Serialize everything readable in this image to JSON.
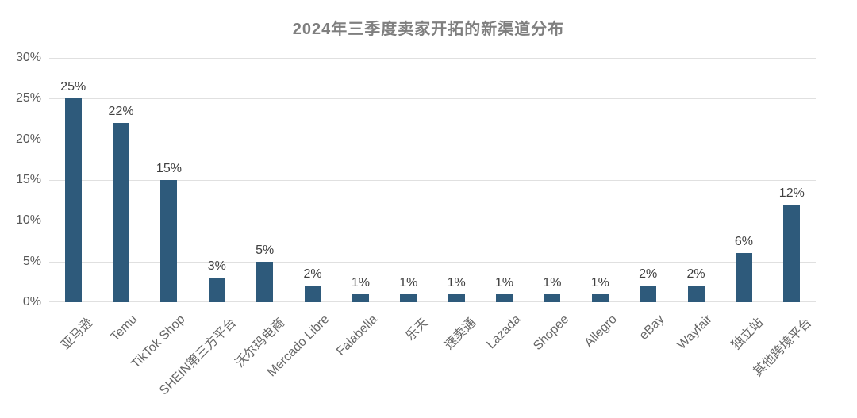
{
  "chart_data": {
    "type": "bar",
    "title": "2024年三季度卖家开拓的新渠道分布",
    "categories": [
      "亚马逊",
      "Temu",
      "TikTok Shop",
      "SHEIN第三方平台",
      "沃尔玛电商",
      "Mercado Libre",
      "Falabella",
      "乐天",
      "速卖通",
      "Lazada",
      "Shopee",
      "Allegro",
      "eBay",
      "Wayfair",
      "独立站",
      "其他跨境平台"
    ],
    "values": [
      25,
      22,
      15,
      3,
      5,
      2,
      1,
      1,
      1,
      1,
      1,
      1,
      2,
      2,
      6,
      12
    ],
    "value_labels": [
      "25%",
      "22%",
      "15%",
      "3%",
      "5%",
      "2%",
      "1%",
      "1%",
      "1%",
      "1%",
      "1%",
      "1%",
      "2%",
      "2%",
      "6%",
      "12%"
    ],
    "xlabel": "",
    "ylabel": "",
    "ylim": [
      0,
      30
    ],
    "yticks": [
      "0%",
      "5%",
      "10%",
      "15%",
      "20%",
      "25%",
      "30%"
    ],
    "grid": "horizontal",
    "legend": "none",
    "x_label_rotation_deg": 45,
    "colors": {
      "bar": "#2e5a7b",
      "title_text": "#7f7f7f",
      "axis_text": "#595959",
      "value_text": "#404040",
      "x_label_text": "#666666",
      "gridline": "#e0e0e0",
      "background": "#ffffff"
    }
  }
}
